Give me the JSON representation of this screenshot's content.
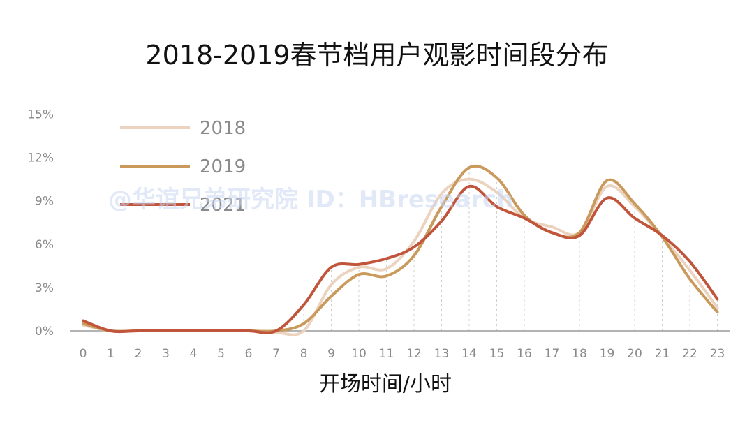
{
  "chart_data": {
    "type": "line",
    "title": "2018-2019春节档用户观影时间段分布",
    "xlabel": "开场时间/小时",
    "ylabel": "",
    "x": [
      0,
      1,
      2,
      3,
      4,
      5,
      6,
      7,
      8,
      9,
      10,
      11,
      12,
      13,
      14,
      15,
      16,
      17,
      18,
      19,
      20,
      21,
      22,
      23
    ],
    "y_ticks": [
      "0%",
      "3%",
      "6%",
      "9%",
      "12%",
      "15%"
    ],
    "ylim": [
      0,
      15
    ],
    "grid": "vertical dashed lines at x ticks",
    "legend_position": "top-left",
    "series": [
      {
        "name": "2018",
        "color": "#ecd3bf",
        "values": [
          0.4,
          0.0,
          0.0,
          0.0,
          0.0,
          0.0,
          0.0,
          -0.1,
          0.0,
          3.2,
          4.4,
          4.3,
          6.2,
          9.5,
          10.5,
          9.6,
          7.8,
          7.2,
          6.8,
          10.0,
          8.6,
          6.5,
          4.2,
          1.6
        ]
      },
      {
        "name": "2019",
        "color": "#c99a5b",
        "values": [
          0.5,
          0.0,
          0.0,
          0.0,
          0.0,
          0.0,
          0.0,
          0.0,
          0.5,
          2.4,
          3.9,
          3.8,
          5.2,
          8.6,
          11.3,
          10.6,
          8.0,
          6.8,
          6.8,
          10.4,
          8.8,
          6.5,
          3.6,
          1.3
        ]
      },
      {
        "name": "2021",
        "color": "#c0553b",
        "values": [
          0.7,
          0.0,
          0.0,
          0.0,
          0.0,
          0.0,
          0.0,
          0.0,
          1.8,
          4.4,
          4.6,
          5.0,
          5.8,
          7.6,
          10.0,
          8.6,
          7.8,
          6.8,
          6.6,
          9.2,
          7.8,
          6.6,
          4.8,
          2.2
        ]
      }
    ]
  },
  "watermark": "@华谊兄弟研究院 ID：HBresearch"
}
